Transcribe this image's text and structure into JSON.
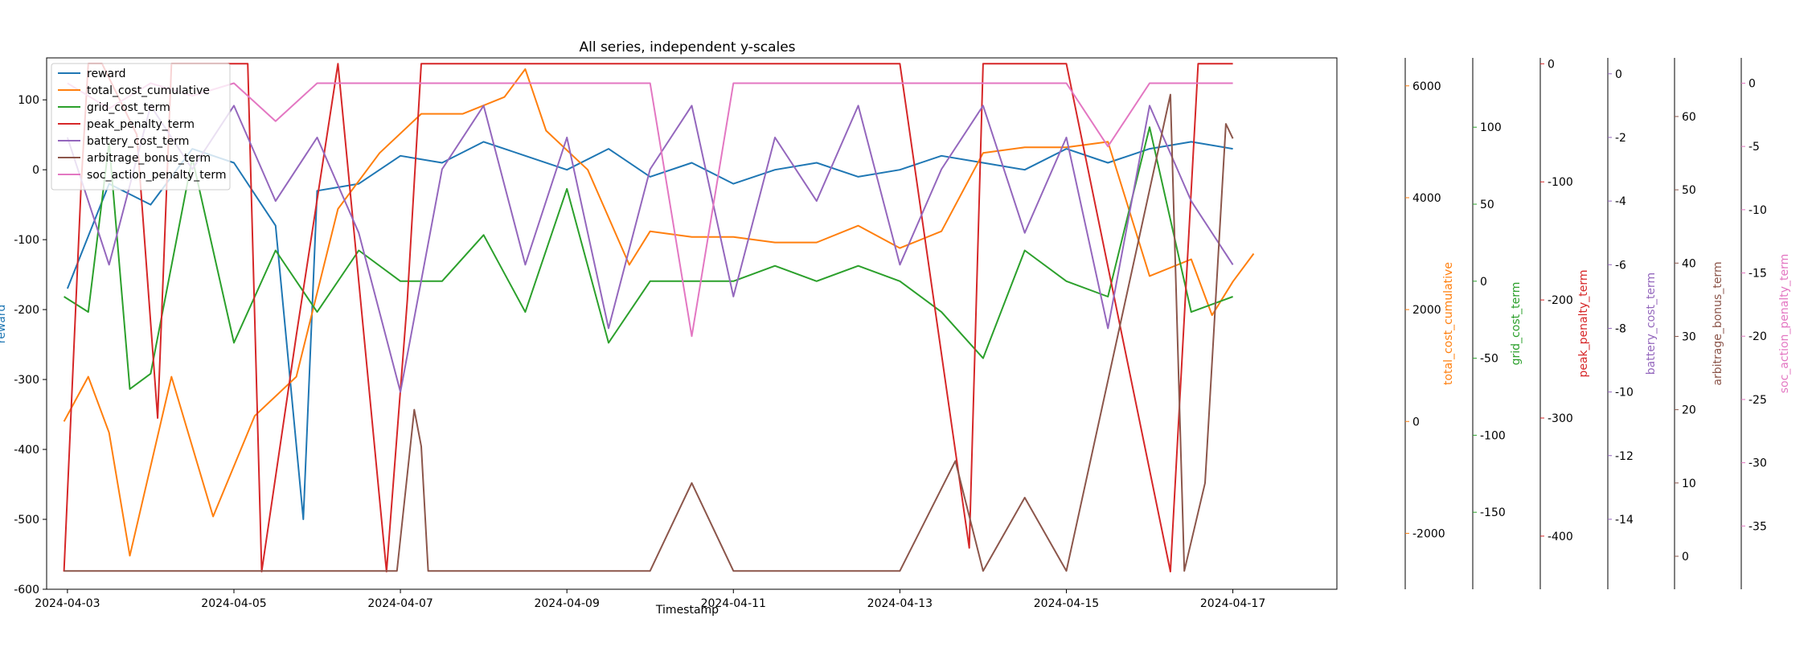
{
  "chart_data": {
    "type": "line",
    "title": "All series, independent y-scales",
    "xlabel": "Timestamp",
    "xlim": [
      "2024-04-02 18:00",
      "2024-04-18 06:00"
    ],
    "x_ticks": [
      "2024-04-03",
      "2024-04-05",
      "2024-04-07",
      "2024-04-09",
      "2024-04-11",
      "2024-04-13",
      "2024-04-15",
      "2024-04-17"
    ],
    "legend_placement": "upper-left",
    "grid": false,
    "axes": [
      {
        "label": "reward",
        "side": "left",
        "color": "#1f77b4",
        "range": [
          -600,
          160
        ],
        "ticks": [
          100,
          0,
          -100,
          -200,
          -300,
          -400,
          -500,
          -600
        ]
      },
      {
        "label": "total_cost_cumulative",
        "side": "right",
        "color": "#ff7f0e",
        "range": [
          -3000,
          6500
        ],
        "ticks": [
          6000,
          4000,
          2000,
          0,
          -2000
        ]
      },
      {
        "label": "grid_cost_term",
        "side": "right",
        "color": "#2ca02c",
        "range": [
          -200,
          145
        ],
        "ticks": [
          100,
          50,
          0,
          -50,
          -100,
          -150
        ]
      },
      {
        "label": "peak_penalty_term",
        "side": "right",
        "color": "#d62728",
        "range": [
          -445,
          5
        ],
        "ticks": [
          0,
          -100,
          -200,
          -300,
          -400
        ]
      },
      {
        "label": "battery_cost_term",
        "side": "right",
        "color": "#9467bd",
        "range": [
          -16.2,
          0.5
        ],
        "ticks": [
          0,
          -2,
          -4,
          -6,
          -8,
          -10,
          -12,
          -14
        ]
      },
      {
        "label": "arbitrage_bonus_term",
        "side": "right",
        "color": "#8c564b",
        "range": [
          -4.5,
          68
        ],
        "ticks": [
          60,
          50,
          40,
          30,
          20,
          10,
          0
        ]
      },
      {
        "label": "soc_action_penalty_term",
        "side": "right",
        "color": "#e377c2",
        "range": [
          -40,
          2
        ],
        "ticks": [
          0,
          -5,
          -10,
          -15,
          -20,
          -25,
          -30,
          -35
        ]
      }
    ],
    "series": [
      {
        "name": "reward",
        "color": "#1f77b4",
        "axis": 0,
        "x": [
          "2024-04-03 00:00",
          "2024-04-03 12:00",
          "2024-04-04 00:00",
          "2024-04-04 12:00",
          "2024-04-05 00:00",
          "2024-04-05 12:00",
          "2024-04-05 20:00",
          "2024-04-06 00:00",
          "2024-04-06 12:00",
          "2024-04-07 00:00",
          "2024-04-07 12:00",
          "2024-04-08 00:00",
          "2024-04-08 12:00",
          "2024-04-09 00:00",
          "2024-04-09 12:00",
          "2024-04-10 00:00",
          "2024-04-10 12:00",
          "2024-04-11 00:00",
          "2024-04-11 12:00",
          "2024-04-12 00:00",
          "2024-04-12 12:00",
          "2024-04-13 00:00",
          "2024-04-13 12:00",
          "2024-04-14 00:00",
          "2024-04-14 12:00",
          "2024-04-15 00:00",
          "2024-04-15 12:00",
          "2024-04-16 00:00",
          "2024-04-16 12:00",
          "2024-04-17 00:00"
        ],
        "values": [
          -170,
          -20,
          -50,
          30,
          10,
          -80,
          -500,
          -30,
          -20,
          20,
          10,
          40,
          20,
          0,
          30,
          -10,
          10,
          -20,
          0,
          10,
          -10,
          0,
          20,
          10,
          0,
          30,
          10,
          30,
          40,
          30
        ]
      },
      {
        "name": "total_cost_cumulative",
        "color": "#ff7f0e",
        "axis": 1,
        "x": [
          "2024-04-02 23:00",
          "2024-04-03 06:00",
          "2024-04-03 12:00",
          "2024-04-03 18:00",
          "2024-04-04 06:00",
          "2024-04-04 18:00",
          "2024-04-05 06:00",
          "2024-04-05 18:00",
          "2024-04-06 06:00",
          "2024-04-06 18:00",
          "2024-04-07 06:00",
          "2024-04-07 18:00",
          "2024-04-08 06:00",
          "2024-04-08 12:00",
          "2024-04-08 18:00",
          "2024-04-09 06:00",
          "2024-04-09 18:00",
          "2024-04-10 00:00",
          "2024-04-10 12:00",
          "2024-04-11 00:00",
          "2024-04-11 12:00",
          "2024-04-12 00:00",
          "2024-04-12 12:00",
          "2024-04-13 00:00",
          "2024-04-13 12:00",
          "2024-04-14 00:00",
          "2024-04-14 12:00",
          "2024-04-15 00:00",
          "2024-04-15 12:00",
          "2024-04-16 00:00",
          "2024-04-16 12:00",
          "2024-04-16 18:00",
          "2024-04-17 00:00",
          "2024-04-17 06:00"
        ],
        "values": [
          0,
          800,
          -200,
          -2400,
          800,
          -1700,
          100,
          800,
          3800,
          4800,
          5500,
          5500,
          5800,
          6300,
          5200,
          4500,
          2800,
          3400,
          3300,
          3300,
          3200,
          3200,
          3500,
          3100,
          3400,
          4800,
          4900,
          4900,
          5000,
          2600,
          2900,
          1900,
          2500,
          3000
        ]
      },
      {
        "name": "grid_cost_term",
        "color": "#2ca02c",
        "axis": 2,
        "x": [
          "2024-04-02 23:00",
          "2024-04-03 06:00",
          "2024-04-03 12:00",
          "2024-04-03 18:00",
          "2024-04-04 00:00",
          "2024-04-04 12:00",
          "2024-04-05 00:00",
          "2024-04-05 12:00",
          "2024-04-06 00:00",
          "2024-04-06 12:00",
          "2024-04-07 00:00",
          "2024-04-07 12:00",
          "2024-04-08 00:00",
          "2024-04-08 12:00",
          "2024-04-09 00:00",
          "2024-04-09 12:00",
          "2024-04-10 00:00",
          "2024-04-10 12:00",
          "2024-04-11 00:00",
          "2024-04-11 12:00",
          "2024-04-12 00:00",
          "2024-04-12 12:00",
          "2024-04-13 00:00",
          "2024-04-13 12:00",
          "2024-04-14 00:00",
          "2024-04-14 12:00",
          "2024-04-15 00:00",
          "2024-04-15 12:00",
          "2024-04-16 00:00",
          "2024-04-16 12:00",
          "2024-04-17 00:00"
        ],
        "values": [
          -10,
          -20,
          90,
          -70,
          -60,
          80,
          -40,
          20,
          -20,
          20,
          0,
          0,
          30,
          -20,
          60,
          -40,
          0,
          0,
          0,
          10,
          0,
          10,
          0,
          -20,
          -50,
          20,
          0,
          -10,
          100,
          -20,
          -10
        ]
      },
      {
        "name": "peak_penalty_term",
        "color": "#d62728",
        "axis": 3,
        "x": [
          "2024-04-02 23:00",
          "2024-04-03 04:00",
          "2024-04-03 06:00",
          "2024-04-03 10:00",
          "2024-04-03 20:00",
          "2024-04-04 02:00",
          "2024-04-04 06:00",
          "2024-04-05 04:00",
          "2024-04-05 08:00",
          "2024-04-05 18:00",
          "2024-04-06 06:00",
          "2024-04-06 20:00",
          "2024-04-07 02:00",
          "2024-04-07 06:00",
          "2024-04-08 08:00",
          "2024-04-09 00:00",
          "2024-04-11 00:00",
          "2024-04-13 00:00",
          "2024-04-13 20:00",
          "2024-04-14 00:00",
          "2024-04-14 06:00",
          "2024-04-15 00:00",
          "2024-04-16 06:00",
          "2024-04-16 14:00",
          "2024-04-17 00:00"
        ],
        "values": [
          -430,
          -100,
          0,
          0,
          -60,
          -300,
          0,
          0,
          -430,
          -230,
          0,
          -430,
          -200,
          0,
          0,
          0,
          0,
          0,
          -410,
          0,
          0,
          0,
          -430,
          0,
          0
        ]
      },
      {
        "name": "battery_cost_term",
        "color": "#9467bd",
        "axis": 4,
        "x": [
          "2024-04-03 00:00",
          "2024-04-03 12:00",
          "2024-04-04 00:00",
          "2024-04-04 12:00",
          "2024-04-05 00:00",
          "2024-04-05 12:00",
          "2024-04-06 00:00",
          "2024-04-06 12:00",
          "2024-04-07 00:00",
          "2024-04-07 12:00",
          "2024-04-08 00:00",
          "2024-04-08 12:00",
          "2024-04-09 00:00",
          "2024-04-09 12:00",
          "2024-04-10 00:00",
          "2024-04-10 12:00",
          "2024-04-11 00:00",
          "2024-04-11 12:00",
          "2024-04-12 00:00",
          "2024-04-12 12:00",
          "2024-04-13 00:00",
          "2024-04-13 12:00",
          "2024-04-14 00:00",
          "2024-04-14 12:00",
          "2024-04-15 00:00",
          "2024-04-15 12:00",
          "2024-04-16 00:00",
          "2024-04-16 12:00",
          "2024-04-17 00:00"
        ],
        "values": [
          -2,
          -6,
          -1,
          -3,
          -1,
          -4,
          -2,
          -5,
          -10,
          -3,
          -1,
          -6,
          -2,
          -8,
          -3,
          -1,
          -7,
          -2,
          -4,
          -1,
          -6,
          -3,
          -1,
          -5,
          -2,
          -8,
          -1,
          -4,
          -6
        ]
      },
      {
        "name": "arbitrage_bonus_term",
        "color": "#8c564b",
        "axis": 5,
        "x": [
          "2024-04-02 23:00",
          "2024-04-05 06:00",
          "2024-04-06 00:00",
          "2024-04-06 23:00",
          "2024-04-07 04:00",
          "2024-04-07 06:00",
          "2024-04-07 08:00",
          "2024-04-07 14:00",
          "2024-04-08 00:00",
          "2024-04-09 00:00",
          "2024-04-10 00:00",
          "2024-04-10 12:00",
          "2024-04-11 00:00",
          "2024-04-12 00:00",
          "2024-04-13 00:00",
          "2024-04-13 16:00",
          "2024-04-14 00:00",
          "2024-04-14 12:00",
          "2024-04-15 00:00",
          "2024-04-16 06:00",
          "2024-04-16 10:00",
          "2024-04-16 16:00",
          "2024-04-16 22:00",
          "2024-04-17 00:00"
        ],
        "values": [
          -2,
          -2,
          -2,
          -2,
          20,
          15,
          -2,
          -2,
          -2,
          -2,
          -2,
          10,
          -2,
          -2,
          -2,
          13,
          -2,
          8,
          -2,
          63,
          -2,
          10,
          59,
          57
        ]
      },
      {
        "name": "soc_action_penalty_term",
        "color": "#e377c2",
        "axis": 6,
        "x": [
          "2024-04-03 00:00",
          "2024-04-03 12:00",
          "2024-04-04 00:00",
          "2024-04-04 12:00",
          "2024-04-05 00:00",
          "2024-04-05 12:00",
          "2024-04-06 00:00",
          "2024-04-07 00:00",
          "2024-04-08 00:00",
          "2024-04-09 00:00",
          "2024-04-10 00:00",
          "2024-04-10 12:00",
          "2024-04-11 00:00",
          "2024-04-12 00:00",
          "2024-04-13 00:00",
          "2024-04-14 00:00",
          "2024-04-15 00:00",
          "2024-04-15 12:00",
          "2024-04-16 00:00",
          "2024-04-17 00:00"
        ],
        "values": [
          0,
          -2,
          0,
          -1,
          0,
          -3,
          0,
          0,
          0,
          0,
          0,
          -20,
          0,
          0,
          0,
          0,
          0,
          -5,
          0,
          0
        ]
      }
    ]
  }
}
